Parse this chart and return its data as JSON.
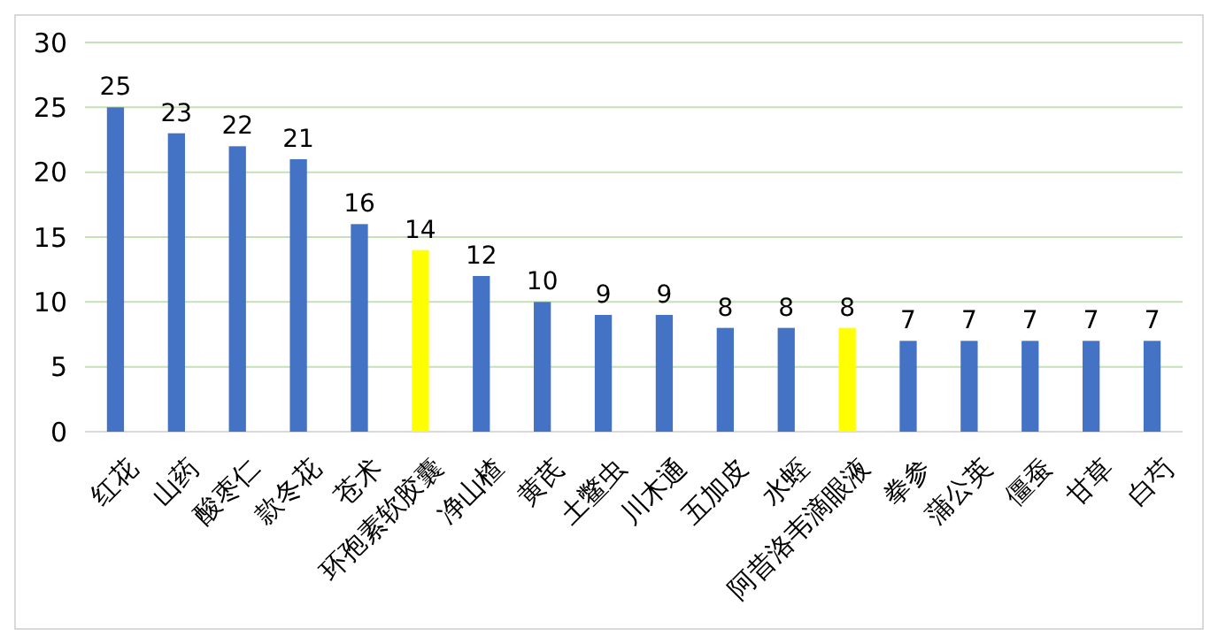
{
  "chart_data": {
    "type": "bar",
    "categories": [
      "红花",
      "山药",
      "酸枣仁",
      "款冬花",
      "苍术",
      "环孢素软胶囊",
      "净山楂",
      "黄芪",
      "土鳖虫",
      "川木通",
      "五加皮",
      "水蛭",
      "阿昔洛韦滴眼液",
      "拳参",
      "蒲公英",
      "僵蚕",
      "甘草",
      "白芍"
    ],
    "values": [
      25,
      23,
      22,
      21,
      16,
      14,
      12,
      10,
      9,
      9,
      8,
      8,
      8,
      7,
      7,
      7,
      7,
      7
    ],
    "colors": [
      "#4472c4",
      "#4472c4",
      "#4472c4",
      "#4472c4",
      "#4472c4",
      "#ffff00",
      "#4472c4",
      "#4472c4",
      "#4472c4",
      "#4472c4",
      "#4472c4",
      "#4472c4",
      "#ffff00",
      "#4472c4",
      "#4472c4",
      "#4472c4",
      "#4472c4",
      "#4472c4"
    ],
    "ylim": [
      0,
      30
    ],
    "yticks": [
      0,
      5,
      10,
      15,
      20,
      25,
      30
    ],
    "grid": "y",
    "data_labels": true
  }
}
